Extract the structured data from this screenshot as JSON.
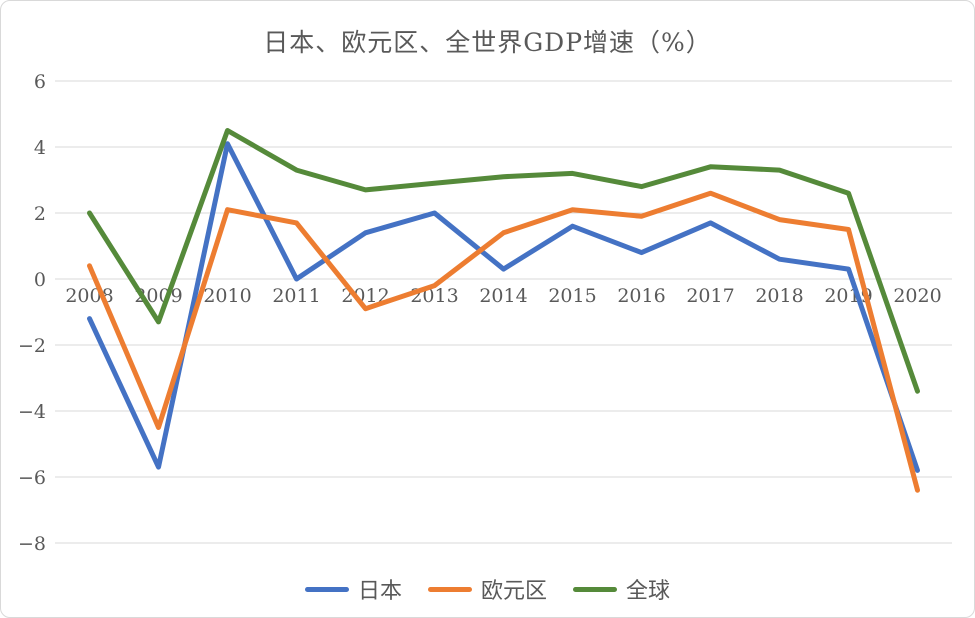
{
  "chart_data": {
    "type": "line",
    "title": "日本、欧元区、全世界GDP增速（%）",
    "xlabel": "",
    "ylabel": "",
    "categories": [
      "2008",
      "2009",
      "2010",
      "2011",
      "2012",
      "2013",
      "2014",
      "2015",
      "2016",
      "2017",
      "2018",
      "2019",
      "2020"
    ],
    "series": [
      {
        "name": "日本",
        "color": "#4472C4",
        "values": [
          -1.2,
          -5.7,
          4.1,
          0.0,
          1.4,
          2.0,
          0.3,
          1.6,
          0.8,
          1.7,
          0.6,
          0.3,
          -5.8
        ]
      },
      {
        "name": "欧元区",
        "color": "#ED7D31",
        "values": [
          0.4,
          -4.5,
          2.1,
          1.7,
          -0.9,
          -0.2,
          1.4,
          2.1,
          1.9,
          2.6,
          1.8,
          1.5,
          -6.4
        ]
      },
      {
        "name": "全球",
        "color": "#558A3A",
        "values": [
          2.0,
          -1.3,
          4.5,
          3.3,
          2.7,
          2.9,
          3.1,
          3.2,
          2.8,
          3.4,
          3.3,
          2.6,
          -3.4
        ]
      }
    ],
    "yticks": [
      6,
      4,
      2,
      0,
      -2,
      -4,
      -6,
      -8
    ],
    "ylim": [
      -8,
      6
    ],
    "grid": true,
    "legend_position": "bottom",
    "colors": {
      "grid": "#D9D9D9",
      "tick_text": "#595959",
      "title_text": "#595959",
      "background": "#FFFFFF"
    }
  }
}
